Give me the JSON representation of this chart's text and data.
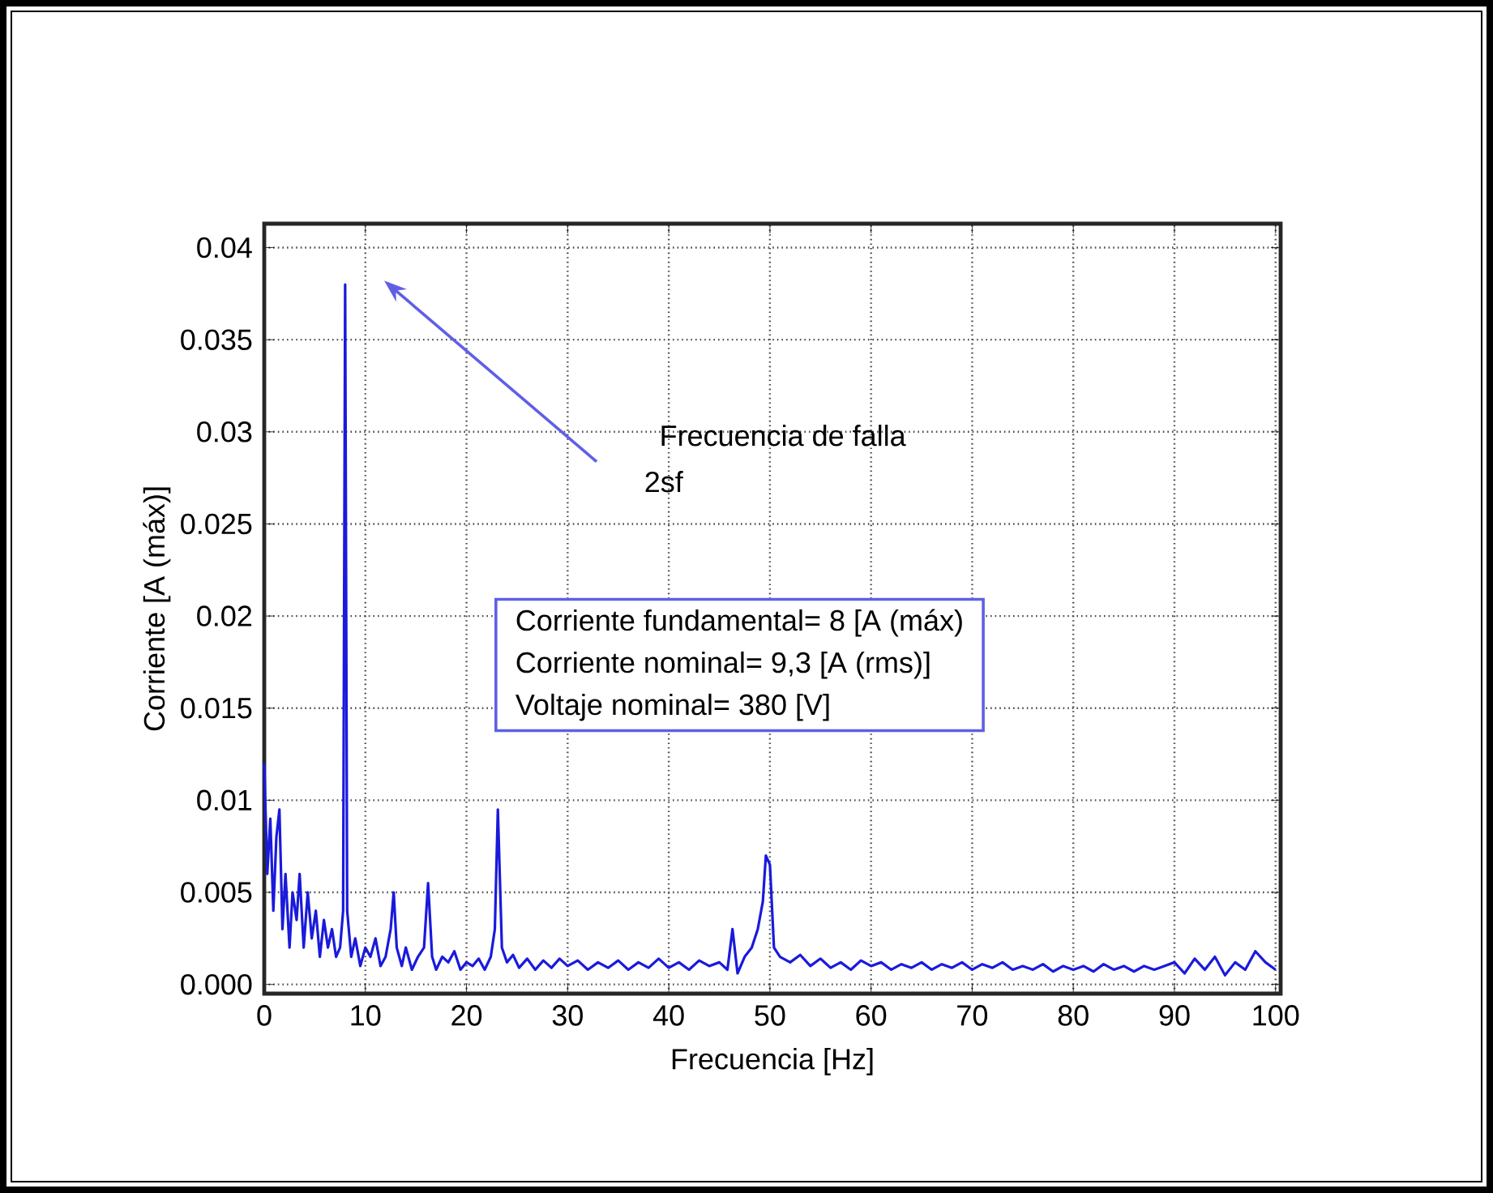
{
  "chart_data": {
    "type": "line",
    "xlabel": "Frecuencia [Hz]",
    "ylabel": "Corriente [A (máx)]",
    "xlim": [
      0,
      100.5
    ],
    "ylim": [
      -0.0005,
      0.0413
    ],
    "xticks": [
      0,
      10,
      20,
      30,
      40,
      50,
      60,
      70,
      80,
      90,
      100
    ],
    "yticks": [
      {
        "value": 0,
        "label": "0.000"
      },
      0.005,
      0.01,
      0.015,
      0.02,
      0.025,
      0.03,
      0.035,
      0.04
    ],
    "grid": true,
    "marker": "none",
    "line_style": "solid",
    "annotations": [
      "Frecuencia de falla",
      "2sf",
      "Corriente fundamental= 8 [A (máx)",
      "Corriente nominal= 9,3 [A (rms)]",
      "Voltaje nominal= 380 [V]"
    ],
    "series": [
      {
        "color": "#1a1adc",
        "x": [
          0,
          0.3,
          0.6,
          0.9,
          1.2,
          1.5,
          1.8,
          2.1,
          2.5,
          2.8,
          3.2,
          3.5,
          3.9,
          4.3,
          4.7,
          5.1,
          5.5,
          5.9,
          6.3,
          6.7,
          7.1,
          7.5,
          7.8,
          8.0,
          8.2,
          8.6,
          9.0,
          9.5,
          10,
          10.5,
          11,
          11.5,
          12,
          12.5,
          12.8,
          13.1,
          13.6,
          14,
          14.6,
          15.2,
          15.8,
          16.2,
          16.6,
          17,
          17.6,
          18.2,
          18.8,
          19.4,
          20,
          20.6,
          21.2,
          21.8,
          22.4,
          22.8,
          23.1,
          23.5,
          24,
          24.6,
          25.2,
          26,
          26.8,
          27.6,
          28.4,
          29.2,
          30,
          31,
          32,
          33,
          34,
          35,
          36,
          37,
          38,
          39,
          40,
          41,
          42,
          43,
          44,
          45,
          45.8,
          46.3,
          46.8,
          47.5,
          48.2,
          48.8,
          49.3,
          49.6,
          50,
          50.4,
          51,
          52,
          53,
          54,
          55,
          56,
          57,
          58,
          59,
          60,
          61,
          62,
          63,
          64,
          65,
          66,
          67,
          68,
          69,
          70,
          71,
          72,
          73,
          74,
          75,
          76,
          77,
          78,
          79,
          80,
          81,
          82,
          83,
          84,
          85,
          86,
          87,
          88,
          89,
          90,
          91,
          92,
          93,
          94,
          95,
          96,
          97,
          98,
          99,
          100
        ],
        "values": [
          0.012,
          0.006,
          0.009,
          0.004,
          0.008,
          0.0095,
          0.003,
          0.006,
          0.002,
          0.005,
          0.0035,
          0.006,
          0.002,
          0.005,
          0.0025,
          0.004,
          0.0015,
          0.0035,
          0.002,
          0.003,
          0.0015,
          0.002,
          0.004,
          0.038,
          0.004,
          0.0015,
          0.0025,
          0.001,
          0.002,
          0.0015,
          0.0025,
          0.001,
          0.0015,
          0.003,
          0.005,
          0.002,
          0.001,
          0.002,
          0.0008,
          0.0015,
          0.002,
          0.0055,
          0.0015,
          0.0008,
          0.0015,
          0.0012,
          0.0018,
          0.0008,
          0.0012,
          0.001,
          0.0014,
          0.0008,
          0.0015,
          0.003,
          0.0095,
          0.002,
          0.0012,
          0.0016,
          0.0009,
          0.0014,
          0.0008,
          0.0013,
          0.0009,
          0.0014,
          0.001,
          0.0013,
          0.0008,
          0.0012,
          0.0009,
          0.0013,
          0.0008,
          0.0012,
          0.0009,
          0.0014,
          0.0009,
          0.0012,
          0.0008,
          0.0013,
          0.001,
          0.0012,
          0.0008,
          0.003,
          0.0006,
          0.0015,
          0.002,
          0.003,
          0.0045,
          0.007,
          0.0065,
          0.002,
          0.0015,
          0.0012,
          0.0016,
          0.001,
          0.0014,
          0.0009,
          0.0012,
          0.0008,
          0.0013,
          0.001,
          0.0012,
          0.0008,
          0.0011,
          0.0009,
          0.0012,
          0.0008,
          0.0011,
          0.0009,
          0.0012,
          0.0008,
          0.0011,
          0.0009,
          0.0012,
          0.0008,
          0.001,
          0.0008,
          0.0011,
          0.0007,
          0.001,
          0.0008,
          0.001,
          0.0007,
          0.0011,
          0.0008,
          0.001,
          0.0007,
          0.001,
          0.0008,
          0.001,
          0.0012,
          0.0006,
          0.0014,
          0.0008,
          0.0015,
          0.0005,
          0.0012,
          0.0008,
          0.0018,
          0.0012,
          0.0008
        ]
      }
    ]
  }
}
